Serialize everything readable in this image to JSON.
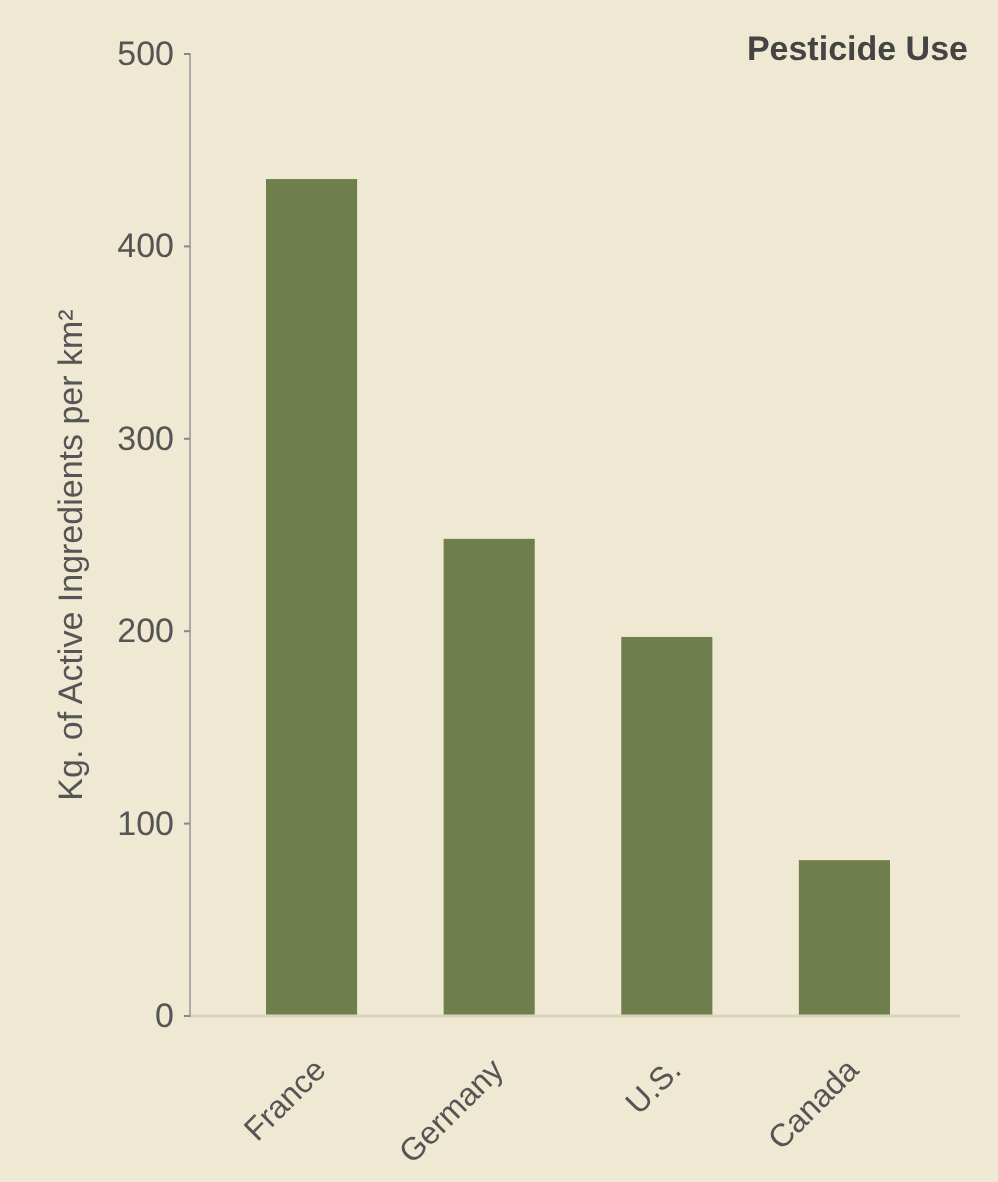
{
  "chart_data": {
    "type": "bar",
    "title": "Pesticide Use",
    "ylabel": "Kg. of Active Ingredients per km²",
    "categories": [
      "France",
      "Germany",
      "U.S.",
      "Canada"
    ],
    "values": [
      435,
      248,
      197,
      81
    ],
    "color": "#6f7f4b",
    "ylim": [
      0,
      500
    ],
    "yticks": [
      0,
      100,
      200,
      300,
      400,
      500
    ],
    "grid": false
  }
}
